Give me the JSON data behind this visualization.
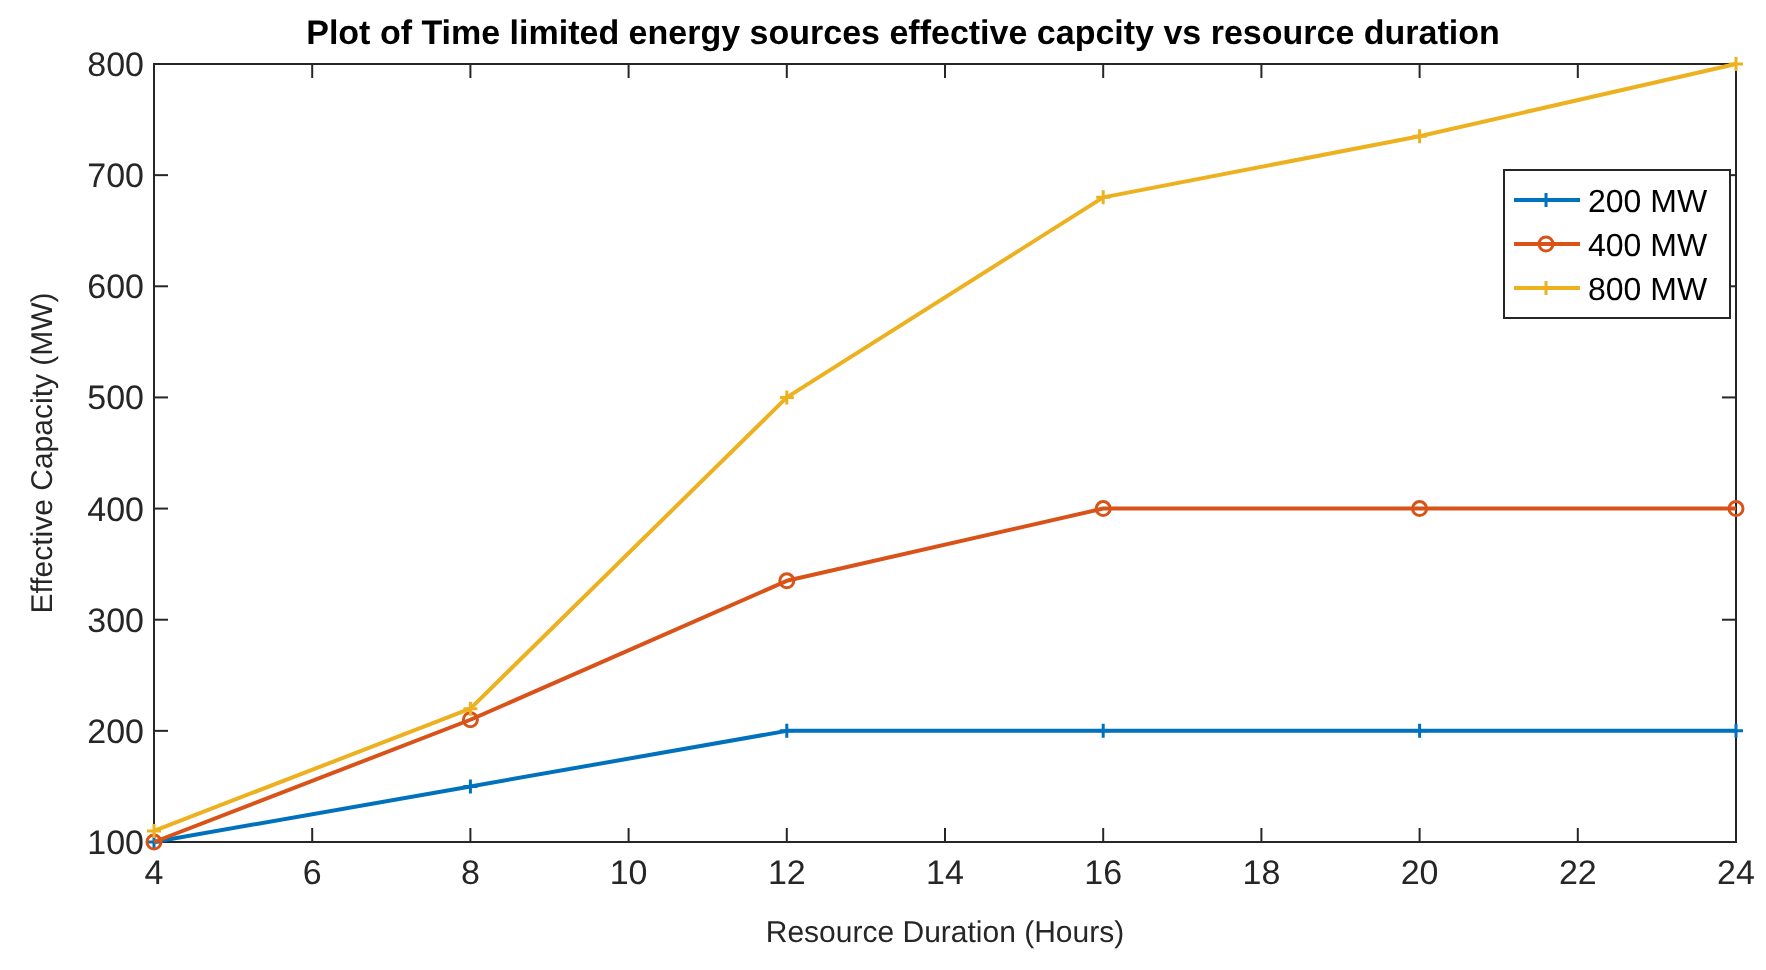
{
  "chart_data": {
    "type": "line",
    "title": "Plot of Time limited energy sources effective capcity vs resource duration",
    "xlabel": "Resource Duration (Hours)",
    "ylabel": "Effective Capacity (MW)",
    "x": [
      4,
      8,
      12,
      16,
      20,
      24
    ],
    "series": [
      {
        "name": "200 MW",
        "color": "#0072bd",
        "marker": "cross",
        "values": [
          100,
          150,
          200,
          200,
          200,
          200
        ]
      },
      {
        "name": "400 MW",
        "color": "#d95319",
        "marker": "circle",
        "values": [
          100,
          210,
          335,
          400,
          400,
          400
        ]
      },
      {
        "name": "800 MW",
        "color": "#edb120",
        "marker": "cross",
        "values": [
          110,
          220,
          500,
          680,
          735,
          800
        ]
      }
    ],
    "xlim": [
      4,
      24
    ],
    "xticks": [
      4,
      6,
      8,
      10,
      12,
      14,
      16,
      18,
      20,
      22,
      24
    ],
    "ylim": [
      100,
      800
    ],
    "yticks": [
      100,
      200,
      300,
      400,
      500,
      600,
      700,
      800
    ],
    "grid": false,
    "legend": "top right",
    "line_style": "solid"
  }
}
